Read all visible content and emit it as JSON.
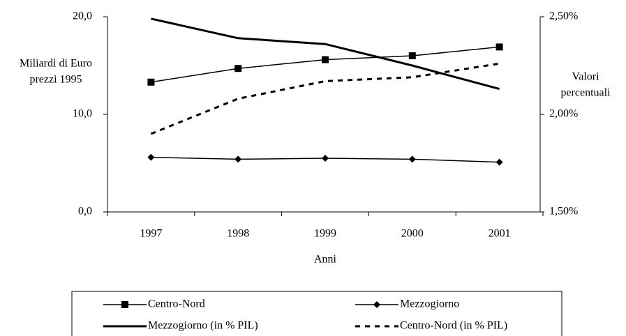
{
  "chart_data": {
    "type": "line",
    "categories": [
      "1997",
      "1998",
      "1999",
      "2000",
      "2001"
    ],
    "xlabel": "Anni",
    "ylabel": [
      "Miliardi di Euro",
      "prezzi 1995"
    ],
    "y2label": [
      "Valori",
      "percentuali"
    ],
    "ylim": [
      0,
      20
    ],
    "yticks": [
      {
        "value": 0,
        "label": "0,0"
      },
      {
        "value": 10,
        "label": "10,0"
      },
      {
        "value": 20,
        "label": "20,0"
      }
    ],
    "y2lim": [
      1.5,
      2.5
    ],
    "y2ticks": [
      {
        "value": 1.5,
        "label": "1,50%"
      },
      {
        "value": 2.0,
        "label": "2,00%"
      },
      {
        "value": 2.5,
        "label": "2,50%"
      }
    ],
    "series": [
      {
        "name": "Centro-Nord",
        "color": "#000000",
        "marker": "square",
        "dash": false,
        "values": [
          13.3,
          14.7,
          15.6,
          16.0,
          16.9
        ]
      },
      {
        "name": "Mezzogiorno",
        "color": "#000000",
        "marker": "diamond",
        "dash": false,
        "values": [
          5.6,
          5.4,
          5.5,
          5.4,
          5.1
        ]
      },
      {
        "name": "Mezzogiorno (in % PIL)",
        "color": "#000000",
        "marker": "none",
        "dash": false,
        "axis": "y2",
        "values": [
          2.49,
          2.39,
          2.36,
          2.25,
          2.13
        ]
      },
      {
        "name": "Centro-Nord (in % PIL)",
        "color": "#000000",
        "marker": "none",
        "dash": true,
        "axis": "y2",
        "values": [
          1.9,
          2.08,
          2.17,
          2.19,
          2.26
        ]
      }
    ]
  }
}
